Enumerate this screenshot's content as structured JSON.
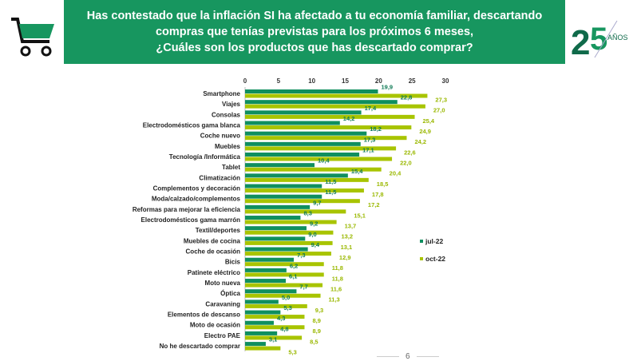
{
  "header": {
    "title_lines": [
      "Has contestado que la inflación SI ha afectado a tu economía familiar, descartando",
      "compras que tenías previstas para los próximos 6 meses,",
      "¿Cuáles son los productos que has descartado comprar?"
    ]
  },
  "logo": {
    "number": "25",
    "text": "AÑOS"
  },
  "page_number": "6",
  "colors": {
    "banner": "#17965f",
    "jul": "#0f8f5f",
    "oct": "#a8c400"
  },
  "chart_data": {
    "type": "bar",
    "orientation": "horizontal",
    "xlim": [
      0,
      30
    ],
    "ticks": [
      0,
      5,
      10,
      15,
      20,
      25,
      30
    ],
    "legend_position": "right",
    "categories": [
      "Smartphone",
      "Viajes",
      "Consolas",
      "Electrodomésticos gama blanca",
      "Coche nuevo",
      "Muebles",
      "Tecnología /Informática",
      "Tablet",
      "Climatización",
      "Complementos y decoración",
      "Moda/calzado/complementos",
      "Reformas para mejorar la eficiencia",
      "Electrodomésticos gama marrón",
      "Textil/deportes",
      "Muebles de cocina",
      "Coche de ocasión",
      "Bicis",
      "Patinete eléctrico",
      "Moto nueva",
      "Óptica",
      "Caravaning",
      "Elementos de descanso",
      "Moto de ocasión",
      "Electro PAE",
      "No he descartado comprar"
    ],
    "series": [
      {
        "name": "jul-22",
        "values": [
          19.9,
          22.8,
          17.4,
          14.2,
          18.2,
          17.3,
          17.1,
          10.4,
          15.4,
          11.5,
          11.5,
          9.7,
          8.3,
          9.2,
          9.0,
          9.4,
          7.3,
          6.2,
          6.1,
          7.7,
          5.0,
          5.3,
          4.3,
          4.8,
          3.1
        ]
      },
      {
        "name": "oct-22",
        "values": [
          27.3,
          27.0,
          25.4,
          24.9,
          24.2,
          22.6,
          22.0,
          20.4,
          18.5,
          17.8,
          17.2,
          15.1,
          13.7,
          13.2,
          13.1,
          12.9,
          11.8,
          11.8,
          11.6,
          11.3,
          9.3,
          8.9,
          8.9,
          8.5,
          5.3
        ]
      }
    ]
  }
}
